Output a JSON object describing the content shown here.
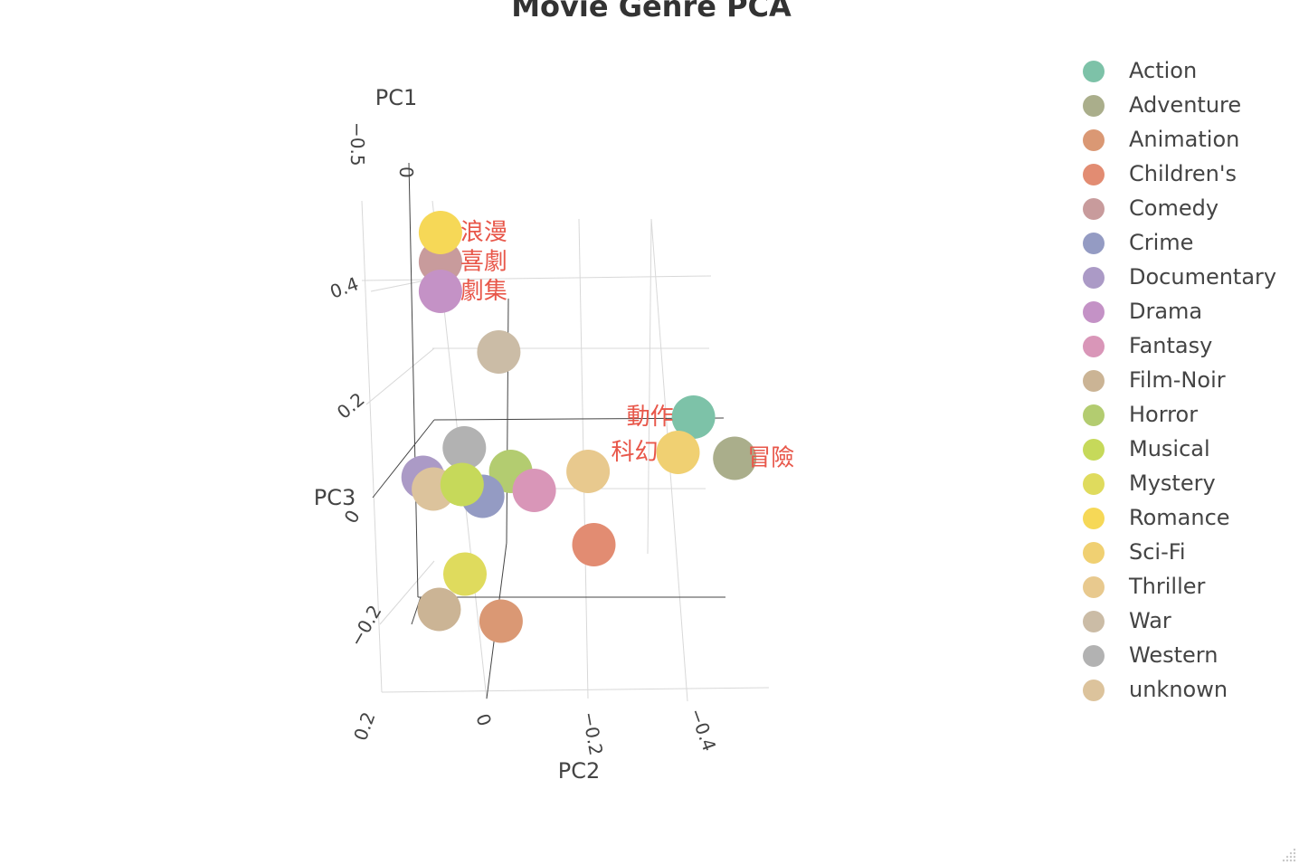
{
  "chart_data": {
    "type": "scatter",
    "title": "Movie Genre PCA",
    "axes": {
      "x": {
        "label": "PC2",
        "ticks": [
          "0.2",
          "0",
          "−0.2",
          "−0.4"
        ]
      },
      "y": {
        "label": "PC1",
        "ticks": [
          "−0.5",
          "0"
        ]
      },
      "z": {
        "label": "PC3",
        "ticks": [
          "0.4",
          "0.2",
          "0",
          "−0.2"
        ]
      }
    },
    "grid": true,
    "legend_position": "right",
    "points": [
      {
        "genre": "Action",
        "color": "#7dc2a8",
        "pc2": -0.38,
        "pc1": 0.2,
        "pc3": 0.14,
        "label": "動作"
      },
      {
        "genre": "Adventure",
        "color": "#aaae8b",
        "pc2": -0.46,
        "pc1": 0.2,
        "pc3": 0.07,
        "label": "冒險"
      },
      {
        "genre": "Animation",
        "color": "#da9874",
        "pc2": -0.02,
        "pc1": -0.1,
        "pc3": -0.2,
        "label": ""
      },
      {
        "genre": "Children's",
        "color": "#e28c72",
        "pc2": -0.2,
        "pc1": -0.1,
        "pc3": -0.07,
        "label": ""
      },
      {
        "genre": "Comedy",
        "color": "#c89b9c",
        "pc2": 0.08,
        "pc1": -0.5,
        "pc3": 0.42,
        "label": "喜劇"
      },
      {
        "genre": "Crime",
        "color": "#949bc3",
        "pc2": 0.02,
        "pc1": 0.0,
        "pc3": 0.01,
        "label": ""
      },
      {
        "genre": "Documentary",
        "color": "#ab9ac6",
        "pc2": 0.14,
        "pc1": 0.1,
        "pc3": 0.04,
        "label": ""
      },
      {
        "genre": "Drama",
        "color": "#c492c6",
        "pc2": 0.08,
        "pc1": -0.5,
        "pc3": 0.37,
        "label": "劇集"
      },
      {
        "genre": "Fantasy",
        "color": "#d996b8",
        "pc2": -0.08,
        "pc1": 0.0,
        "pc3": 0.02,
        "label": ""
      },
      {
        "genre": "Film-Noir",
        "color": "#cbb495",
        "pc2": 0.1,
        "pc1": -0.1,
        "pc3": -0.18,
        "label": ""
      },
      {
        "genre": "Horror",
        "color": "#b3cc70",
        "pc2": -0.03,
        "pc1": 0.1,
        "pc3": 0.05,
        "label": ""
      },
      {
        "genre": "Musical",
        "color": "#c6d95a",
        "pc2": 0.06,
        "pc1": 0.0,
        "pc3": 0.03,
        "label": ""
      },
      {
        "genre": "Mystery",
        "color": "#dfdb5d",
        "pc2": 0.05,
        "pc1": -0.1,
        "pc3": -0.12,
        "label": ""
      },
      {
        "genre": "Romance",
        "color": "#f6d857",
        "pc2": 0.08,
        "pc1": -0.5,
        "pc3": 0.47,
        "label": "浪漫"
      },
      {
        "genre": "Sci-Fi",
        "color": "#f0d072",
        "pc2": -0.35,
        "pc1": 0.2,
        "pc3": 0.08,
        "label": "科幻"
      },
      {
        "genre": "Thriller",
        "color": "#e8c98e",
        "pc2": -0.18,
        "pc1": 0.1,
        "pc3": 0.05,
        "label": ""
      },
      {
        "genre": "War",
        "color": "#cbbca6",
        "pc2": -0.02,
        "pc1": -0.2,
        "pc3": 0.26,
        "label": ""
      },
      {
        "genre": "Western",
        "color": "#b2b2b2",
        "pc2": 0.06,
        "pc1": 0.1,
        "pc3": 0.09,
        "label": ""
      },
      {
        "genre": "unknown",
        "color": "#dcc39c",
        "pc2": 0.12,
        "pc1": 0.1,
        "pc3": 0.02,
        "label": ""
      }
    ],
    "annotation_color": "#e8574a"
  }
}
